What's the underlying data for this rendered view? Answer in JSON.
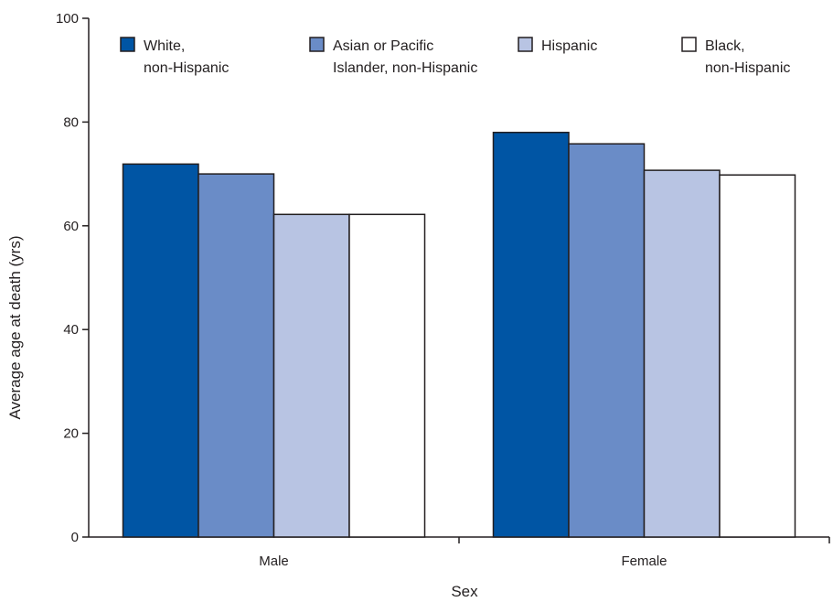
{
  "chart_data": {
    "type": "bar",
    "xlabel": "Sex",
    "ylabel": "Average age at death (yrs)",
    "ylim": [
      0,
      100
    ],
    "yticks": [
      0,
      20,
      40,
      60,
      80,
      100
    ],
    "categories": [
      "Male",
      "Female"
    ],
    "series": [
      {
        "name": "White, non-Hispanic",
        "legend_lines": [
          "White,",
          "non-Hispanic"
        ],
        "color": "#0055a4",
        "values": [
          71.9,
          78.0
        ]
      },
      {
        "name": "Asian or Pacific Islander, non-Hispanic",
        "legend_lines": [
          "Asian or Pacific",
          "Islander, non-Hispanic"
        ],
        "color": "#6a8cc7",
        "values": [
          70.0,
          75.8
        ]
      },
      {
        "name": "Hispanic",
        "legend_lines": [
          "Hispanic"
        ],
        "color": "#b8c4e3",
        "values": [
          62.2,
          70.7
        ]
      },
      {
        "name": "Black, non-Hispanic",
        "legend_lines": [
          "Black,",
          "non-Hispanic"
        ],
        "color": "#ffffff",
        "values": [
          62.2,
          69.8
        ]
      }
    ],
    "legend": "top",
    "grid": false
  }
}
